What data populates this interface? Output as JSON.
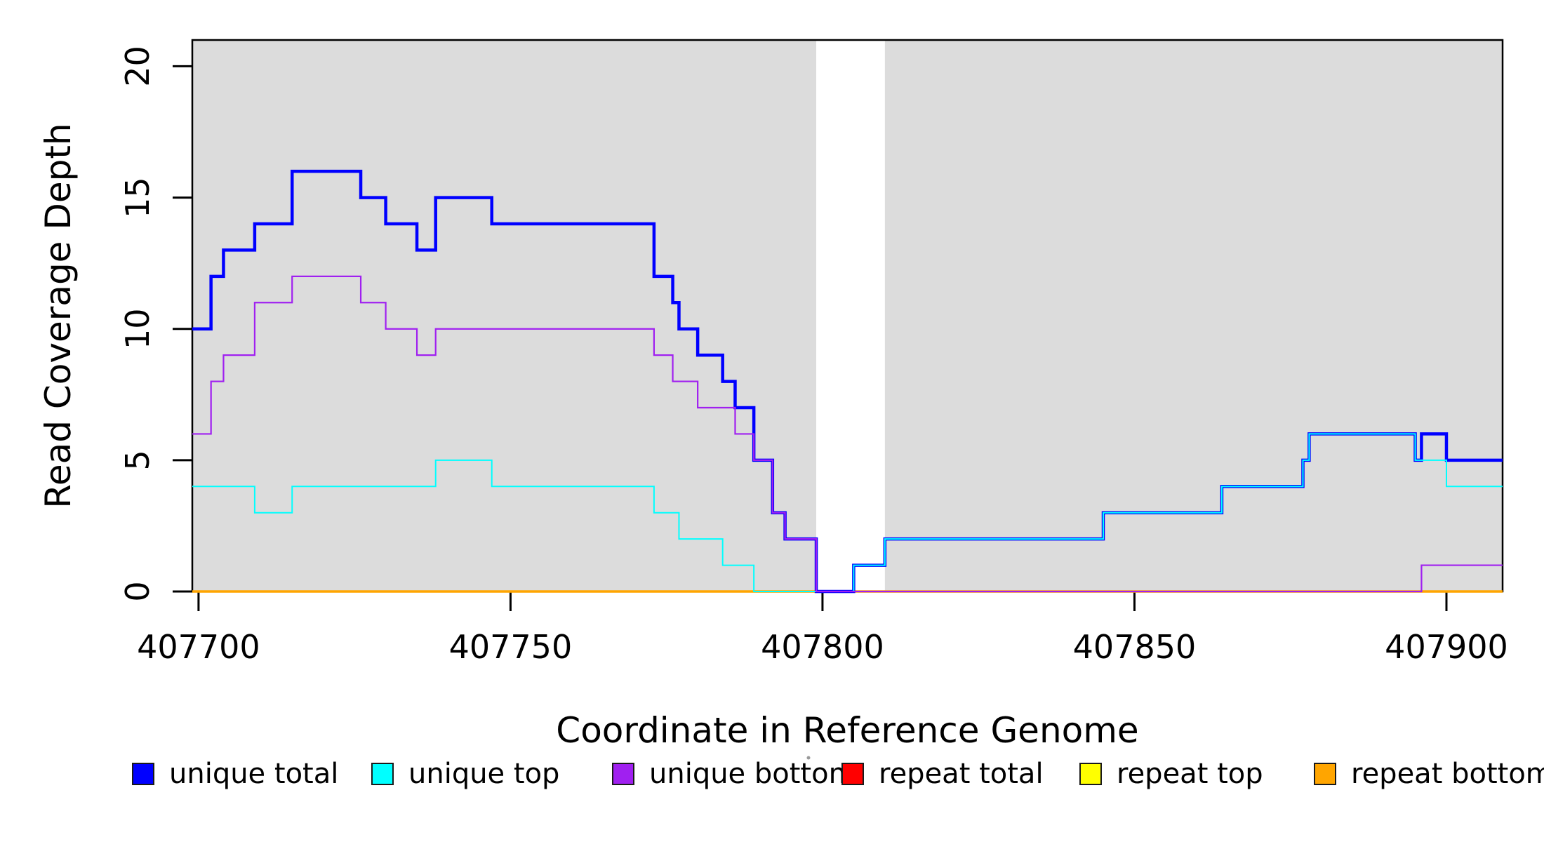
{
  "chart_data": {
    "type": "line",
    "subtype": "step-post",
    "title": "",
    "xlabel": "Coordinate in Reference Genome",
    "ylabel": "Read Coverage Depth",
    "xlim": [
      407699,
      407909
    ],
    "ylim": [
      0,
      21
    ],
    "xticks": [
      407700,
      407750,
      407800,
      407850,
      407900
    ],
    "yticks": [
      0,
      5,
      10,
      15,
      20
    ],
    "grid": false,
    "legend_position": "bottom",
    "shade_color": "#DCDCDC",
    "shaded_regions": [
      [
        407699,
        407799
      ],
      [
        407810,
        407909
      ]
    ],
    "series": [
      {
        "name": "repeat total",
        "color": "#FF0000",
        "width": 2.5,
        "points": [
          [
            407699,
            0
          ]
        ]
      },
      {
        "name": "repeat top",
        "color": "#FFFF00",
        "width": 2.5,
        "points": [
          [
            407699,
            0
          ]
        ]
      },
      {
        "name": "repeat bottom",
        "color": "#FFA500",
        "width": 3.5,
        "points": [
          [
            407699,
            0
          ]
        ]
      },
      {
        "name": "unique total",
        "color": "#0000FF",
        "width": 4.5,
        "points": [
          [
            407699,
            10
          ],
          [
            407702,
            12
          ],
          [
            407704,
            13
          ],
          [
            407709,
            14
          ],
          [
            407715,
            16
          ],
          [
            407726,
            15
          ],
          [
            407730,
            14
          ],
          [
            407735,
            13
          ],
          [
            407738,
            15
          ],
          [
            407747,
            14
          ],
          [
            407773,
            12
          ],
          [
            407776,
            11
          ],
          [
            407777,
            10
          ],
          [
            407780,
            9
          ],
          [
            407784,
            8
          ],
          [
            407786,
            7
          ],
          [
            407789,
            5
          ],
          [
            407792,
            3
          ],
          [
            407794,
            2
          ],
          [
            407799,
            0
          ],
          [
            407805,
            1
          ],
          [
            407810,
            2
          ],
          [
            407845,
            3
          ],
          [
            407864,
            4
          ],
          [
            407877,
            5
          ],
          [
            407878,
            6
          ],
          [
            407895,
            5
          ],
          [
            407896,
            6
          ],
          [
            407900,
            5
          ]
        ]
      },
      {
        "name": "unique top",
        "color": "#00FFFF",
        "width": 2,
        "points": [
          [
            407699,
            4
          ],
          [
            407709,
            3
          ],
          [
            407715,
            4
          ],
          [
            407738,
            5
          ],
          [
            407747,
            4
          ],
          [
            407773,
            3
          ],
          [
            407777,
            2
          ],
          [
            407784,
            1
          ],
          [
            407789,
            0
          ],
          [
            407805,
            1
          ],
          [
            407810,
            2
          ],
          [
            407845,
            3
          ],
          [
            407864,
            4
          ],
          [
            407877,
            5
          ],
          [
            407878,
            6
          ],
          [
            407895,
            5
          ],
          [
            407900,
            4
          ]
        ]
      },
      {
        "name": "unique bottom",
        "color": "#A020F0",
        "width": 2.2,
        "points": [
          [
            407699,
            6
          ],
          [
            407702,
            8
          ],
          [
            407704,
            9
          ],
          [
            407709,
            11
          ],
          [
            407715,
            12
          ],
          [
            407726,
            11
          ],
          [
            407730,
            10
          ],
          [
            407735,
            9
          ],
          [
            407738,
            10
          ],
          [
            407773,
            9
          ],
          [
            407776,
            8
          ],
          [
            407780,
            7
          ],
          [
            407786,
            6
          ],
          [
            407789,
            5
          ],
          [
            407792,
            3
          ],
          [
            407794,
            2
          ],
          [
            407799,
            0
          ],
          [
            407896,
            1
          ]
        ]
      }
    ],
    "legend": [
      {
        "label": "unique total",
        "color": "#0000FF"
      },
      {
        "label": "unique top",
        "color": "#00FFFF"
      },
      {
        "label": "unique bottom",
        "color": "#A020F0"
      },
      {
        "label": "repeat total",
        "color": "#FF0000"
      },
      {
        "label": "repeat top",
        "color": "#FFFF00"
      },
      {
        "label": "repeat bottom",
        "color": "#FFA500"
      }
    ]
  }
}
